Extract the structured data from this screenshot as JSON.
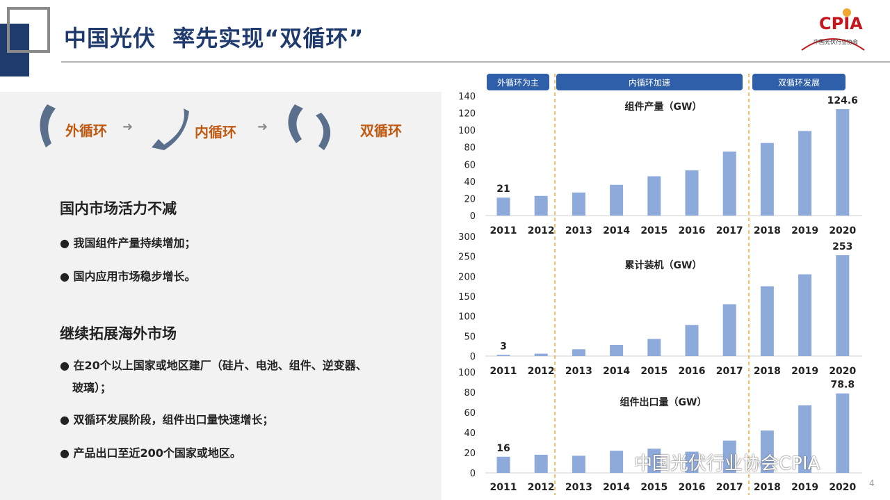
{
  "slide": {
    "title": "中国光伏  率先实现“双循环”",
    "page_number": "4"
  },
  "logo": {
    "text": "CPIA",
    "sub": "中国光伏行业协会"
  },
  "cycle": {
    "outer": "外循环",
    "inner": "内循环",
    "dual": "双循环",
    "arrow": "➜"
  },
  "sections": [
    {
      "title": "国内市场活力不减",
      "bullets": [
        "● 我国组件产量持续增加；",
        "● 国内应用市场稳步增长。"
      ]
    },
    {
      "title": "继续拓展海外市场",
      "bullets": [
        "● 在20个以上国家或地区建厂（硅片、电池、组件、逆变器、",
        "玻璃）；",
        "● 双循环发展阶段，组件出口量快速增长；",
        "● 产品出口至近200个国家或地区。"
      ]
    }
  ],
  "phases": [
    "外循环为主",
    "内循环加速",
    "双循环发展"
  ],
  "watermark": "中国光伏行业协会CPIA",
  "colors": {
    "bar": "#8eaadb",
    "phase": "#2f5fa8",
    "divider": "#f0a830",
    "title": "#1f3b6e",
    "accent": "#c0580f"
  },
  "chart_data": [
    {
      "type": "bar",
      "title": "组件产量（GW）",
      "categories": [
        "2011",
        "2012",
        "2013",
        "2014",
        "2015",
        "2016",
        "2017",
        "2018",
        "2019",
        "2020"
      ],
      "values": [
        21,
        23,
        27,
        36,
        46,
        53,
        75,
        85,
        99,
        124.6
      ],
      "ylim": [
        0,
        140
      ],
      "yticks": [
        0,
        20,
        40,
        60,
        80,
        100,
        120,
        140
      ],
      "labels": [
        {
          "index": 0,
          "text": "21"
        },
        {
          "index": 9,
          "text": "124.6"
        }
      ]
    },
    {
      "type": "bar",
      "title": "累计装机（GW）",
      "categories": [
        "2011",
        "2012",
        "2013",
        "2014",
        "2015",
        "2016",
        "2017",
        "2018",
        "2019",
        "2020"
      ],
      "values": [
        3,
        6,
        17,
        28,
        43,
        78,
        130,
        175,
        205,
        253
      ],
      "ylim": [
        0,
        300
      ],
      "yticks": [
        0,
        50,
        100,
        150,
        200,
        250,
        300
      ],
      "labels": [
        {
          "index": 0,
          "text": "3"
        },
        {
          "index": 9,
          "text": "253"
        }
      ]
    },
    {
      "type": "bar",
      "title": "组件出口量（GW）",
      "categories": [
        "2011",
        "2012",
        "2013",
        "2014",
        "2015",
        "2016",
        "2017",
        "2018",
        "2019",
        "2020"
      ],
      "values": [
        16,
        18,
        17,
        22,
        24,
        21,
        32,
        42,
        67,
        78.8
      ],
      "ylim": [
        0,
        100
      ],
      "yticks": [
        0,
        20,
        40,
        60,
        80,
        100
      ],
      "labels": [
        {
          "index": 0,
          "text": "16"
        },
        {
          "index": 9,
          "text": "78.8"
        }
      ]
    }
  ]
}
